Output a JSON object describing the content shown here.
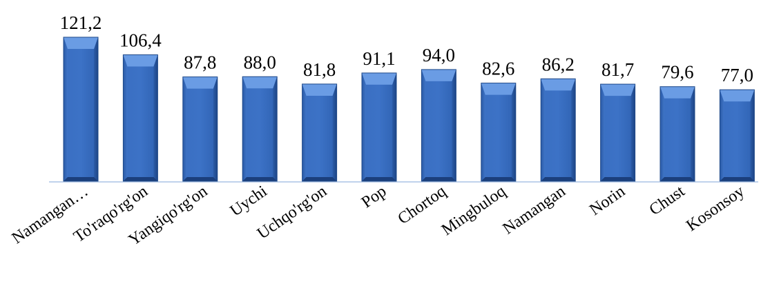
{
  "chart_data": {
    "type": "bar",
    "title": "",
    "xlabel": "",
    "ylabel": "",
    "categories": [
      "Namangan…",
      "To'raqo'rg'on",
      "Yangiqo'rg'on",
      "Uychi",
      "Uchqo'rg'on",
      "Pop",
      "Chortoq",
      "Mingbuloq",
      "Namangan",
      "Norin",
      "Chust",
      "Kosonsoy"
    ],
    "values": [
      121.2,
      106.4,
      87.8,
      88.0,
      81.8,
      91.1,
      94.0,
      82.6,
      86.2,
      81.7,
      79.6,
      77.0
    ],
    "value_labels": [
      "121,2",
      "106,4",
      "87,8",
      "88,0",
      "81,8",
      "91,1",
      "94,0",
      "82,6",
      "86,2",
      "81,7",
      "79,6",
      "77,0"
    ],
    "ylim": [
      0,
      121.2
    ],
    "grid": false,
    "legend": "none",
    "colors": {
      "bar_light": "#4e86d8",
      "bar_mid": "#3566b8",
      "bar_dark": "#1f4a8f",
      "axis": "#bdd0ea"
    }
  }
}
